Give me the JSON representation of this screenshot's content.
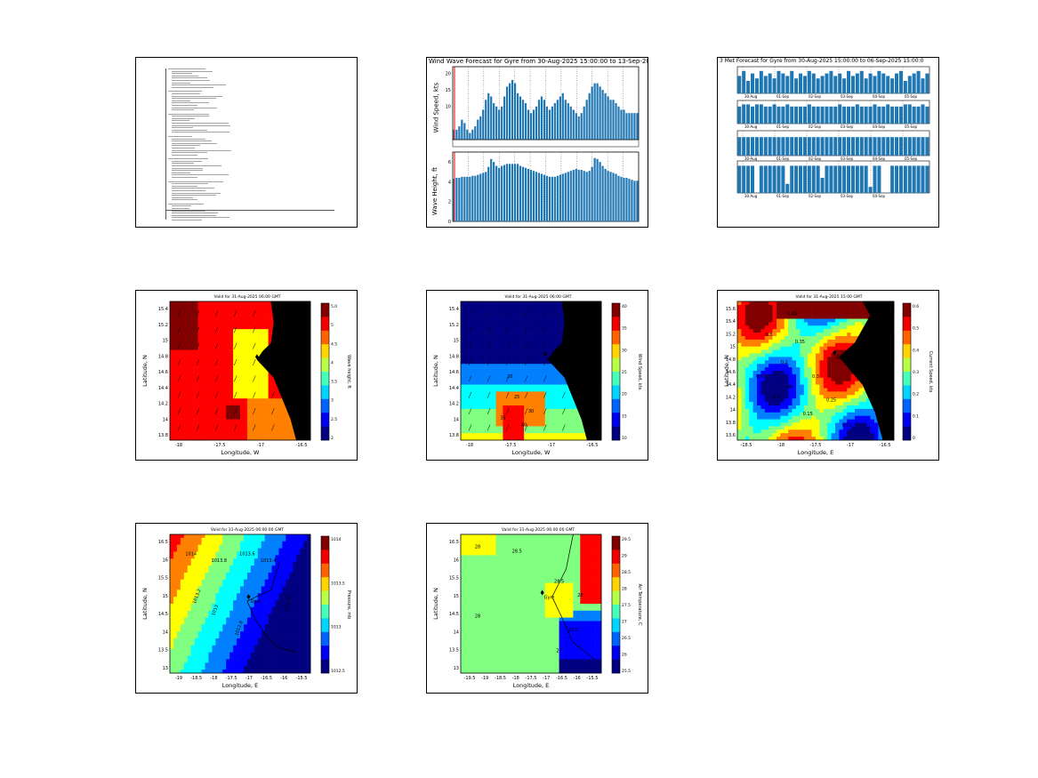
{
  "colors": {
    "bar": "#1f77b4",
    "land": "#000000",
    "cbar": [
      "#00007f",
      "#0000ff",
      "#007fff",
      "#00ffff",
      "#7fff7f",
      "#ffff00",
      "#ff7f00",
      "#ff0000",
      "#7f0000"
    ]
  },
  "panel1": {
    "type": "document-thumbnail"
  },
  "panel2": {
    "title": "Wind Wave Forecast for Gyre from 30-Aug-2025 15:00:00 to 13-Sep-2025 15",
    "top_ylabel": "Wind Speed, kts",
    "bottom_ylabel": "Wave Height, ft",
    "top_yticks": [
      "20",
      "15",
      "10"
    ],
    "bottom_yticks": [
      "6",
      "4",
      "2",
      "0"
    ]
  },
  "panel3": {
    "title": "3 Met Forecast for Gyre from 30-Aug-2025 15:00:00 to 06-Sep-2025 15:00:0",
    "rows": [
      {
        "ticks": [
          "30-Aug",
          "01-Sep",
          "02-Sep",
          "03-Sep",
          "04-Sep",
          "05-Sep"
        ]
      },
      {
        "ticks": [
          "30-Aug",
          "01-Sep",
          "02-Sep",
          "03-Sep",
          "04-Sep",
          "05-Sep"
        ]
      },
      {
        "ticks": [
          "30-Aug",
          "01-Sep",
          "02-Sep",
          "03-Sep",
          "04-Sep",
          "05-Sep"
        ]
      },
      {
        "ticks": [
          "30-Aug",
          "01-Sep",
          "02-Sep",
          "03-Sep",
          "04-Sep"
        ]
      }
    ]
  },
  "map_wave": {
    "title": "Valid for 31-Aug-2025 06:00 GMT",
    "xlabel": "Longitude, W",
    "ylabel": "Latitude, N",
    "cbar_label": "Wave height, ft",
    "cbar_ticks": [
      "5.0",
      "5",
      "4.5",
      "4",
      "3.5",
      "3",
      "2.5",
      "2"
    ],
    "yticks": [
      "15.4",
      "15.2",
      "15",
      "14.8",
      "14.6",
      "14.4",
      "14.2",
      "14",
      "13.8"
    ],
    "xticks": [
      "-18",
      "-17.5",
      "-17",
      "-16.5"
    ],
    "gyre": "Gyre"
  },
  "map_wind": {
    "title": "Valid for 31-Aug-2025 06:00 GMT",
    "xlabel": "Longitude, W",
    "ylabel": "Latitude, N",
    "cbar_label": "Wind Speed, kts",
    "cbar_ticks": [
      "40",
      "35",
      "30",
      "25",
      "20",
      "15",
      "10"
    ],
    "yticks": [
      "15.4",
      "15.2",
      "15",
      "14.8",
      "14.6",
      "14.4",
      "14.2",
      "14",
      "13.8"
    ],
    "xticks": [
      "-18",
      "-17.5",
      "-17",
      "-16.5"
    ],
    "gyre": "Gyre",
    "contours": [
      "20",
      "25",
      "30",
      "35",
      "40"
    ]
  },
  "map_current": {
    "title": "Valid for 31-Aug-2025 15:00 GMT",
    "xlabel": "Longitude, E",
    "ylabel": "Latitude, N",
    "cbar_label": "Current Speed, kts",
    "cbar_ticks": [
      "0.6",
      "0.5",
      "0.4",
      "0.3",
      "0.2",
      "0.1",
      "0"
    ],
    "yticks": [
      "15.6",
      "15.4",
      "15.2",
      "15",
      "14.8",
      "14.6",
      "14.4",
      "14.2",
      "14",
      "13.8",
      "13.6"
    ],
    "xticks": [
      "-18.5",
      "-18",
      "-17.5",
      "-17",
      "-16.5"
    ],
    "gyre": "Gyre",
    "contours": [
      "0.45",
      "0.3",
      "0.35",
      "0.2",
      "0.3",
      "0.25",
      "0.15",
      "0.3",
      "0.45",
      "0.25"
    ]
  },
  "map_pressure": {
    "title": "Valid for 31-Aug-2025 06:00:00 GMT",
    "xlabel": "Longitude, E",
    "ylabel": "Latitude, N",
    "cbar_label": "Pressure, mb",
    "cbar_ticks": [
      "1014",
      "1013.5",
      "1013",
      "1012.5"
    ],
    "yticks": [
      "16.5",
      "16",
      "15.5",
      "15",
      "14.5",
      "14",
      "13.5",
      "13"
    ],
    "xticks": [
      "-19",
      "-18.5",
      "-18",
      "-17.5",
      "-17",
      "-16.5",
      "-16",
      "-15.5"
    ],
    "gyre": "Gyre",
    "contours": [
      "1014",
      "1013.8",
      "1013.6",
      "1013.4",
      "1013.2",
      "1013",
      "1012.8",
      "1012.6"
    ]
  },
  "map_temp": {
    "title": "Valid for 31-Aug-2025 06:00:00 GMT",
    "xlabel": "Longitude, E",
    "ylabel": "Latitude, N",
    "cbar_label": "Air Temperature, C",
    "cbar_ticks": [
      "29.5",
      "29",
      "28.5",
      "28",
      "27.5",
      "27",
      "26.5",
      "26",
      "25.5"
    ],
    "yticks": [
      "16.5",
      "16",
      "15.5",
      "15",
      "14.5",
      "14",
      "13.5",
      "13"
    ],
    "xticks": [
      "-19.5",
      "-19",
      "-18.5",
      "-18",
      "-17.5",
      "-17",
      "-16.5",
      "-16",
      "-15.5"
    ],
    "gyre": "Gyre",
    "contours": [
      "28",
      "28.5",
      "28",
      "28.5",
      "28",
      "27.5",
      "27"
    ]
  }
}
